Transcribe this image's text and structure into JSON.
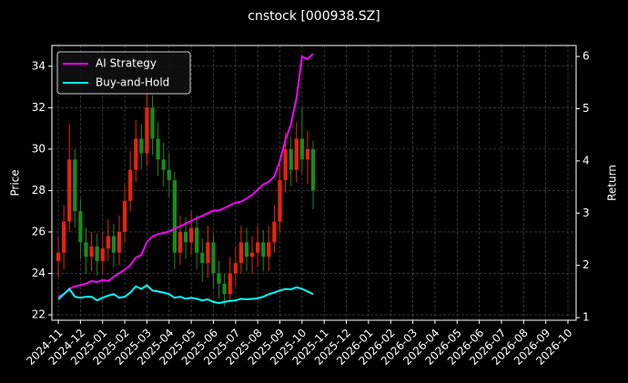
{
  "chart_data": {
    "type": "candlestick",
    "title": "cnstock [000938.SZ]",
    "ylabel": "Price",
    "y2label": "Return",
    "x": [
      0,
      0.25,
      0.5,
      0.75,
      1,
      1.25,
      1.5,
      1.75,
      2,
      2.25,
      2.5,
      2.75,
      3,
      3.25,
      3.5,
      3.75,
      4,
      4.25,
      4.5,
      4.75,
      5,
      5.25,
      5.5,
      5.75,
      6,
      6.25,
      6.5,
      6.75,
      7,
      7.25,
      7.5,
      7.75,
      8,
      8.25,
      8.5,
      8.75,
      9,
      9.25,
      9.5,
      9.75,
      10,
      10.25,
      10.5,
      10.75,
      11,
      11.25,
      11.5
    ],
    "open": [
      24.6,
      25.0,
      26.5,
      29.5,
      27.0,
      25.5,
      24.8,
      25.3,
      24.6,
      25.2,
      25.8,
      25.0,
      26.0,
      27.5,
      29.0,
      30.5,
      29.8,
      32.0,
      30.5,
      29.5,
      29.0,
      28.5,
      25.0,
      26.0,
      25.5,
      26.2,
      25.0,
      24.5,
      25.5,
      24.0,
      23.5,
      23.0,
      24.0,
      24.5,
      25.5,
      24.8,
      25.0,
      25.5,
      24.8,
      25.5,
      26.5,
      28.5,
      30.0,
      29.0,
      30.5,
      29.5,
      30.0
    ],
    "high": [
      25.8,
      27.3,
      31.2,
      30.0,
      27.6,
      26.2,
      26.0,
      25.9,
      26.0,
      26.6,
      26.4,
      26.8,
      28.3,
      29.9,
      31.4,
      31.2,
      33.2,
      32.6,
      31.3,
      30.3,
      29.8,
      28.9,
      26.8,
      26.7,
      27.0,
      26.8,
      25.7,
      26.3,
      25.9,
      24.6,
      24.0,
      24.8,
      25.3,
      26.3,
      26.2,
      25.8,
      26.3,
      26.1,
      26.3,
      27.3,
      29.3,
      30.8,
      30.6,
      31.3,
      32.0,
      30.9,
      30.4
    ],
    "low": [
      23.8,
      24.2,
      26.0,
      26.2,
      24.7,
      24.0,
      24.1,
      23.9,
      24.0,
      24.6,
      24.3,
      24.4,
      25.5,
      27.0,
      28.4,
      29.0,
      29.2,
      29.7,
      28.7,
      28.2,
      27.7,
      24.2,
      24.4,
      24.7,
      24.9,
      24.2,
      23.6,
      23.8,
      23.3,
      22.8,
      22.4,
      22.6,
      23.4,
      24.0,
      24.1,
      24.0,
      24.3,
      24.1,
      24.1,
      25.0,
      26.0,
      27.9,
      28.2,
      28.4,
      28.8,
      28.3,
      27.1
    ],
    "close": [
      25.0,
      26.5,
      29.5,
      27.0,
      25.5,
      24.8,
      25.3,
      24.6,
      25.2,
      25.8,
      25.0,
      26.0,
      27.5,
      29.0,
      30.5,
      29.8,
      32.0,
      30.5,
      29.5,
      29.0,
      28.5,
      25.0,
      26.0,
      25.5,
      26.2,
      25.0,
      24.5,
      25.5,
      24.0,
      23.5,
      23.0,
      24.0,
      24.5,
      25.5,
      24.8,
      25.0,
      25.5,
      24.8,
      25.5,
      26.5,
      28.5,
      30.0,
      29.0,
      30.5,
      29.5,
      30.0,
      28.0
    ],
    "up_color": "#e8230c",
    "down_color": "#1b8a1b",
    "series": [
      {
        "name": "AI Strategy",
        "color": "#ff00ff",
        "axis": "y2",
        "values": [
          1.4,
          1.45,
          1.55,
          1.6,
          1.62,
          1.65,
          1.7,
          1.68,
          1.72,
          1.7,
          1.78,
          1.85,
          1.92,
          2.0,
          2.15,
          2.2,
          2.45,
          2.55,
          2.6,
          2.62,
          2.65,
          2.7,
          2.75,
          2.8,
          2.85,
          2.9,
          2.95,
          3.0,
          3.05,
          3.05,
          3.1,
          3.15,
          3.2,
          3.22,
          3.28,
          3.35,
          3.45,
          3.55,
          3.6,
          3.7,
          4.0,
          4.4,
          4.7,
          5.2,
          6.0,
          5.95,
          6.05
        ]
      },
      {
        "name": "Buy-and-Hold",
        "color": "#00ffff",
        "axis": "y2",
        "values": [
          1.35,
          1.45,
          1.55,
          1.4,
          1.38,
          1.4,
          1.4,
          1.33,
          1.38,
          1.42,
          1.45,
          1.38,
          1.4,
          1.48,
          1.6,
          1.55,
          1.62,
          1.52,
          1.5,
          1.48,
          1.45,
          1.38,
          1.4,
          1.36,
          1.38,
          1.36,
          1.33,
          1.35,
          1.3,
          1.28,
          1.3,
          1.32,
          1.33,
          1.36,
          1.35,
          1.36,
          1.37,
          1.4,
          1.45,
          1.48,
          1.52,
          1.55,
          1.54,
          1.58,
          1.55,
          1.5,
          1.45
        ]
      }
    ],
    "xlim": [
      -0.29,
      23.37
    ],
    "xticks": [
      {
        "value": 0,
        "label": "2024-11"
      },
      {
        "value": 1,
        "label": "2024-12"
      },
      {
        "value": 2,
        "label": "2025-01"
      },
      {
        "value": 3,
        "label": "2025-02"
      },
      {
        "value": 4,
        "label": "2025-03"
      },
      {
        "value": 5,
        "label": "2025-04"
      },
      {
        "value": 6,
        "label": "2025-05"
      },
      {
        "value": 7,
        "label": "2025-06"
      },
      {
        "value": 8,
        "label": "2025-07"
      },
      {
        "value": 9,
        "label": "2025-08"
      },
      {
        "value": 10,
        "label": "2025-09"
      },
      {
        "value": 11,
        "label": "2025-10"
      },
      {
        "value": 12,
        "label": "2025-11"
      },
      {
        "value": 13,
        "label": "2025-12"
      },
      {
        "value": 14,
        "label": "2026-01"
      },
      {
        "value": 15,
        "label": "2026-02"
      },
      {
        "value": 16,
        "label": "2026-03"
      },
      {
        "value": 17,
        "label": "2026-04"
      },
      {
        "value": 18,
        "label": "2026-05"
      },
      {
        "value": 19,
        "label": "2026-06"
      },
      {
        "value": 20,
        "label": "2026-07"
      },
      {
        "value": 21,
        "label": "2026-08"
      },
      {
        "value": 22,
        "label": "2026-09"
      },
      {
        "value": 23,
        "label": "2026-10"
      }
    ],
    "ylim": [
      21.74,
      35.0
    ],
    "yticks": [
      22,
      24,
      26,
      28,
      30,
      32,
      34
    ],
    "y2lim": [
      0.95,
      6.21
    ],
    "y2ticks": [
      1,
      2,
      3,
      4,
      5,
      6
    ],
    "grid": true,
    "legend": "upper left"
  }
}
